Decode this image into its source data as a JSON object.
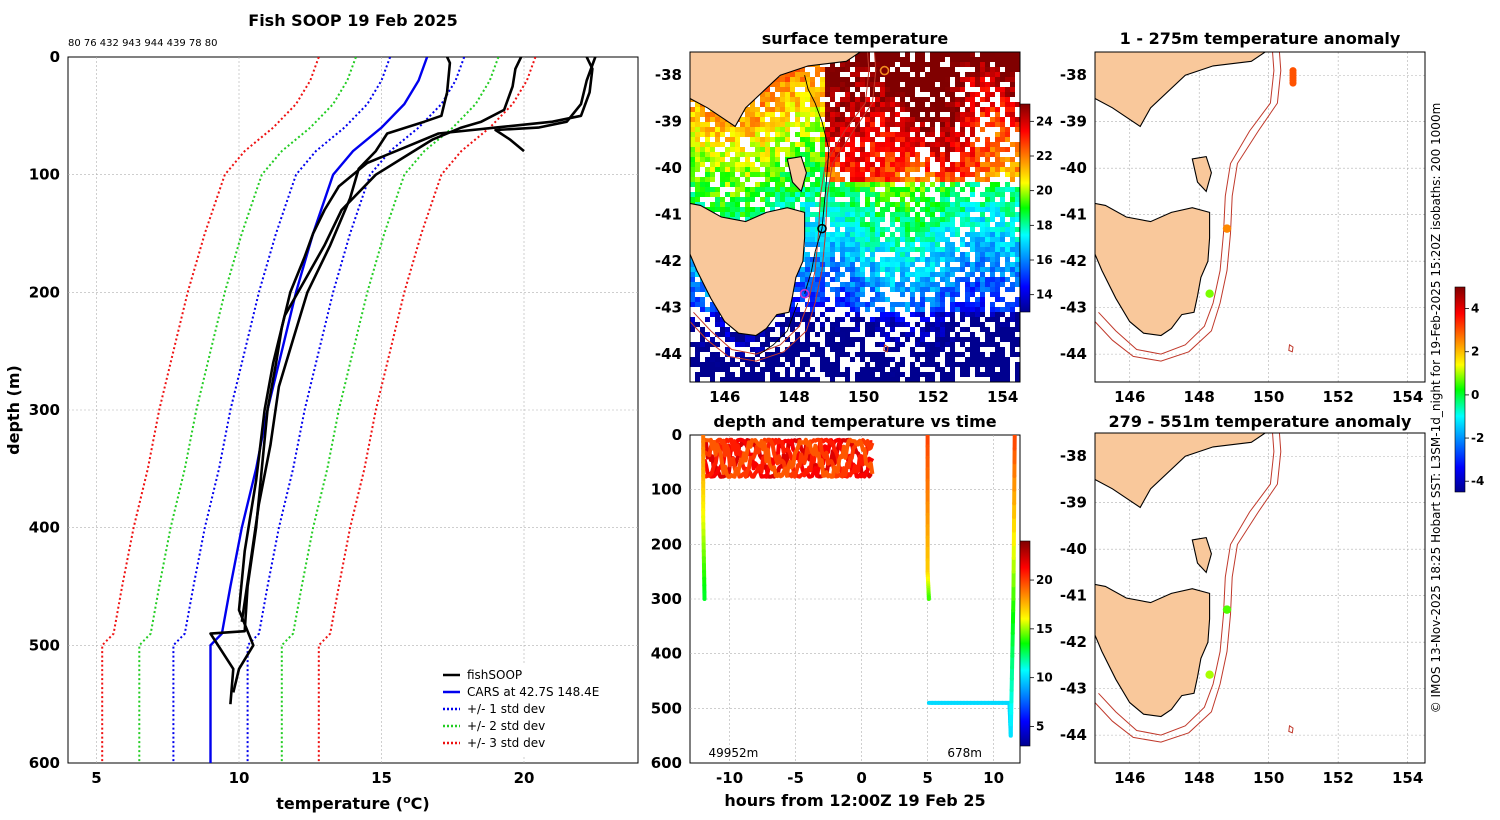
{
  "figure": {
    "title": "Fish SOOP 19 Feb 2025",
    "ids_line": "80 76 432 943 944 439 78 80",
    "credit": "© IMOS 13-Nov-2025 18:25 Hobart SST: L3SM-1d_night for 19-Feb-2025 15:20Z isobaths: 200  1000m"
  },
  "colors": {
    "land": "#f9c89b",
    "fishsoop": "#000000",
    "cars": "#0000ee",
    "std1": "#0000ee",
    "std2": "#22cc22",
    "std3": "#ee1111",
    "isobath": "#c0392b",
    "grid": "#b0b0b0"
  },
  "chart_data": [
    {
      "type": "line",
      "name": "profile",
      "title": "Fish SOOP 19 Feb 2025",
      "xlabel": "temperature (°C)",
      "ylabel": "depth (m)",
      "xlim": [
        4,
        24
      ],
      "ylim": [
        600,
        0
      ],
      "xticks": [
        5,
        10,
        15,
        20
      ],
      "yticks": [
        0,
        100,
        200,
        300,
        400,
        500,
        600
      ],
      "grid": true,
      "legend": {
        "placement": "bottom-right",
        "entries": [
          "fishSOOP",
          "CARS at 42.7S 148.4E",
          "+/- 1 std dev",
          "+/- 2 std dev",
          "+/- 3 std dev"
        ]
      },
      "cars": {
        "depth": [
          0,
          20,
          40,
          60,
          80,
          100,
          150,
          200,
          250,
          300,
          350,
          400,
          450,
          490,
          500,
          600
        ],
        "temp": [
          16.6,
          16.3,
          15.8,
          15.0,
          14.0,
          13.3,
          12.6,
          12.0,
          11.5,
          11.0,
          10.6,
          10.1,
          9.7,
          9.4,
          9.0,
          9.0
        ]
      },
      "std_offsets": [
        1.3,
        2.5,
        3.8
      ],
      "fishsoop": [
        {
          "depth": [
            0,
            10,
            30,
            50,
            55,
            60,
            65,
            75,
            90,
            110,
            130,
            150,
            170,
            200,
            230,
            260,
            300,
            350,
            400,
            450,
            488,
            490,
            520,
            550
          ],
          "temp": [
            22.2,
            22.4,
            22.3,
            22.0,
            21.0,
            19.0,
            17.0,
            16.0,
            14.5,
            13.5,
            13.0,
            12.6,
            12.3,
            11.8,
            11.5,
            11.3,
            11.0,
            10.8,
            10.6,
            10.3,
            10.2,
            9.0,
            9.8,
            9.7
          ]
        },
        {
          "depth": [
            0,
            10,
            25,
            45,
            55,
            60,
            70,
            85,
            100,
            130,
            160,
            190,
            220,
            260,
            300,
            360,
            420,
            470,
            488,
            500,
            520,
            540
          ],
          "temp": [
            19.9,
            19.7,
            19.6,
            19.3,
            18.5,
            17.8,
            16.8,
            15.8,
            14.8,
            13.6,
            13.0,
            12.3,
            11.6,
            11.2,
            10.9,
            10.6,
            10.2,
            10.0,
            10.3,
            10.5,
            10.0,
            9.8
          ]
        },
        {
          "depth": [
            0,
            5,
            30,
            40,
            50,
            55,
            65,
            80,
            95,
            120,
            160,
            200,
            240,
            280,
            330,
            380,
            430,
            480
          ],
          "temp": [
            17.3,
            17.4,
            17.3,
            17.2,
            17.1,
            16.5,
            15.2,
            14.8,
            14.2,
            13.9,
            13.2,
            12.4,
            11.9,
            11.4,
            11.1,
            10.7,
            10.4,
            10.1
          ]
        },
        {
          "depth": [
            0,
            20,
            40,
            55,
            60,
            62,
            70,
            80
          ],
          "temp": [
            22.5,
            22.2,
            22.0,
            21.5,
            20.5,
            19.0,
            19.5,
            20.0
          ]
        }
      ]
    },
    {
      "type": "heatmap",
      "name": "surface_temperature_map",
      "title": "surface temperature",
      "xlim": [
        145,
        154.5
      ],
      "ylim": [
        -44.6,
        -37.5
      ],
      "xticks": [
        146,
        148,
        150,
        152,
        154
      ],
      "yticks": [
        -38,
        -39,
        -40,
        -41,
        -42,
        -43,
        -44
      ],
      "colorbar": {
        "min": 13,
        "max": 25,
        "ticks": [
          14,
          16,
          18,
          20,
          22,
          24
        ]
      },
      "track": {
        "lon": [
          148.3,
          148.5,
          148.6,
          148.8,
          148.9,
          149.0,
          148.8,
          148.6,
          148.4,
          148.3,
          148.1,
          147.8,
          147.4,
          147.0
        ],
        "lat": [
          -42.7,
          -42.2,
          -41.8,
          -41.3,
          -40.5,
          -39.6,
          -39.0,
          -38.6,
          -38.3,
          -38.0,
          -42.9,
          -43.5,
          -43.8,
          -44.0
        ]
      },
      "markers": [
        {
          "lon": 148.3,
          "lat": -42.7,
          "color": "#cc33cc",
          "label": ""
        },
        {
          "lon": 148.8,
          "lat": -41.3,
          "color": "#ffffff",
          "label": ""
        },
        {
          "lon": 150.6,
          "lat": -37.9,
          "color": "#f08a1e",
          "label": ""
        }
      ]
    },
    {
      "type": "scatter",
      "name": "depth_temperature_time",
      "title": "depth and temperature vs time",
      "xlabel": "hours from 12:00Z 19 Feb 25",
      "xlim": [
        -13,
        12
      ],
      "ylim": [
        600,
        0
      ],
      "xticks": [
        -10,
        -5,
        0,
        5,
        10
      ],
      "yticks": [
        0,
        100,
        200,
        300,
        400,
        500,
        600
      ],
      "colorbar": {
        "min": 3,
        "max": 24,
        "ticks": [
          5,
          10,
          15,
          20
        ]
      },
      "segments": [
        {
          "x": [
            -12.0,
            -12.0,
            -11.9
          ],
          "depth": [
            0,
            150,
            300
          ],
          "temp": [
            19,
            16,
            13
          ]
        },
        {
          "x": [
            5.0,
            5.0,
            5.1
          ],
          "depth": [
            0,
            250,
            300
          ],
          "temp": [
            20,
            17,
            14
          ]
        },
        {
          "x": [
            5.1,
            8.0,
            11.2,
            11.3,
            11.5,
            11.6
          ],
          "depth": [
            490,
            490,
            490,
            550,
            300,
            0
          ],
          "temp": [
            10,
            10,
            10,
            10,
            14,
            20
          ]
        }
      ],
      "surface_band": {
        "x_range": [
          -11.9,
          0.9
        ],
        "depth_range": [
          5,
          80
        ],
        "temp": 22
      },
      "depth_labels": [
        {
          "x": -11.6,
          "text": "49952m"
        },
        {
          "x": 6.5,
          "text": "678m"
        }
      ]
    },
    {
      "type": "scatter",
      "name": "anomaly_1_275",
      "title": "1 - 275m temperature anomaly",
      "xlim": [
        145,
        154.5
      ],
      "ylim": [
        -44.6,
        -37.5
      ],
      "xticks": [
        146,
        148,
        150,
        152,
        154
      ],
      "yticks": [
        -38,
        -39,
        -40,
        -41,
        -42,
        -43,
        -44
      ],
      "points": [
        {
          "lon": 148.8,
          "lat": -41.3,
          "anomaly": 2.5
        },
        {
          "lon": 148.3,
          "lat": -42.7,
          "anomaly": 0.8
        },
        {
          "lon": 150.7,
          "lat": -37.9,
          "anomaly": 3.0
        }
      ]
    },
    {
      "type": "scatter",
      "name": "anomaly_279_551",
      "title": "279 - 551m temperature anomaly",
      "xlim": [
        145,
        154.5
      ],
      "ylim": [
        -44.6,
        -37.5
      ],
      "xticks": [
        146,
        148,
        150,
        152,
        154
      ],
      "yticks": [
        -38,
        -39,
        -40,
        -41,
        -42,
        -43,
        -44
      ],
      "colorbar": {
        "min": -4.5,
        "max": 5,
        "ticks": [
          -4,
          -2,
          0,
          2,
          4
        ]
      },
      "points": [
        {
          "lon": 148.8,
          "lat": -41.3,
          "anomaly": 0.6
        },
        {
          "lon": 148.3,
          "lat": -42.7,
          "anomaly": 1.0
        }
      ]
    }
  ]
}
